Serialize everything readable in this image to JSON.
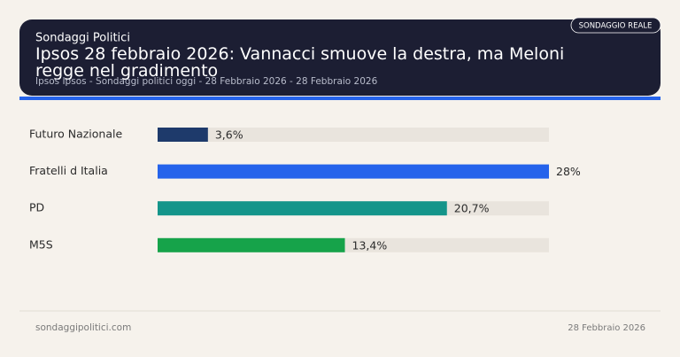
{
  "header": {
    "badge": "SONDAGGIO REALE",
    "brand": "Sondaggi Politici",
    "subtitle": "Ipsos Ipsos - Sondaggi politici oggi - 28 Febbraio 2026 - 28 Febbraio 2026"
  },
  "chart_data": {
    "type": "bar",
    "orientation": "horizontal",
    "title": "Ipsos 28 febbraio 2026: Vannacci smuove la destra, ma Meloni regge nel gradimento",
    "categories": [
      "Futuro Nazionale",
      "Fratelli d Italia",
      "PD",
      "M5S"
    ],
    "values": [
      3.6,
      28,
      20.7,
      13.4
    ],
    "value_labels": [
      "3,6%",
      "28%",
      "20,7%",
      "13,4%"
    ],
    "colors": [
      "#1e3a6b",
      "#2563eb",
      "#14958a",
      "#16a34a"
    ],
    "xlim": [
      0,
      28
    ]
  },
  "footer": {
    "site": "sondaggipolitici.com",
    "date": "28 Febbraio 2026"
  }
}
